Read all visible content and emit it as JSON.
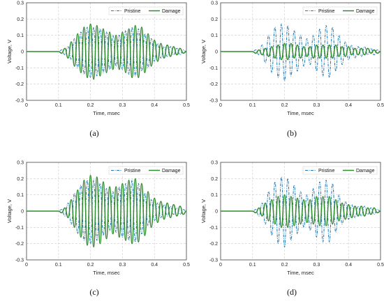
{
  "figure": {
    "colors": {
      "pristine": "#1f77b4",
      "damage": "#2e8b2e",
      "grid": "#cccccc",
      "axis": "#444444"
    }
  },
  "chart_data": [
    {
      "panel_label": "(a)",
      "type": "line",
      "xlabel": "Time, msec",
      "ylabel": "Voltage, V",
      "xlim": [
        0,
        0.5
      ],
      "ylim": [
        -0.3,
        0.3
      ],
      "x_ticks": [
        "0",
        "0.1",
        "0.2",
        "0.3",
        "0.4",
        "0.5"
      ],
      "y_ticks": [
        "0.3",
        "0.2",
        "0.1",
        "0",
        "-0.1",
        "-0.2",
        "-0.3"
      ],
      "grid": true,
      "legend_position": "top-right",
      "series": [
        {
          "name": "Pristine",
          "style": "dash-dot",
          "x": [
            0,
            0.1,
            0.11,
            0.12,
            0.13,
            0.14,
            0.15,
            0.16,
            0.17,
            0.18,
            0.19,
            0.2,
            0.21,
            0.22,
            0.23,
            0.24,
            0.25,
            0.26,
            0.27,
            0.28,
            0.29,
            0.3,
            0.31,
            0.32,
            0.33,
            0.34,
            0.35,
            0.36,
            0.37,
            0.38,
            0.39,
            0.4,
            0.41,
            0.42,
            0.43,
            0.44,
            0.45,
            0.46,
            0.47,
            0.48,
            0.49,
            0.5
          ],
          "y": [
            0.0,
            0.0,
            0.01,
            -0.02,
            0.03,
            -0.05,
            0.08,
            -0.1,
            0.12,
            -0.14,
            0.15,
            -0.16,
            0.15,
            -0.15,
            0.14,
            -0.13,
            0.12,
            -0.11,
            0.1,
            -0.09,
            0.1,
            -0.11,
            0.13,
            -0.14,
            0.15,
            -0.15,
            0.14,
            -0.12,
            0.11,
            -0.1,
            0.08,
            -0.06,
            0.05,
            -0.04,
            0.03,
            -0.03,
            0.03,
            -0.02,
            0.02,
            -0.02,
            0.01,
            0.0
          ]
        },
        {
          "name": "Damage",
          "style": "solid",
          "x": [
            0,
            0.1,
            0.11,
            0.12,
            0.13,
            0.14,
            0.15,
            0.16,
            0.17,
            0.18,
            0.19,
            0.2,
            0.21,
            0.22,
            0.23,
            0.24,
            0.25,
            0.26,
            0.27,
            0.28,
            0.29,
            0.3,
            0.31,
            0.32,
            0.33,
            0.34,
            0.35,
            0.36,
            0.37,
            0.38,
            0.39,
            0.4,
            0.41,
            0.42,
            0.43,
            0.44,
            0.45,
            0.46,
            0.47,
            0.48,
            0.49,
            0.5
          ],
          "y": [
            0.0,
            0.0,
            -0.01,
            0.02,
            -0.04,
            0.06,
            -0.09,
            0.11,
            -0.13,
            0.15,
            -0.16,
            0.17,
            -0.17,
            0.16,
            -0.15,
            0.14,
            -0.13,
            0.12,
            -0.11,
            0.1,
            -0.11,
            0.12,
            -0.13,
            0.14,
            -0.16,
            0.16,
            -0.16,
            0.15,
            -0.13,
            0.11,
            -0.09,
            0.07,
            -0.06,
            0.05,
            -0.04,
            0.04,
            -0.03,
            0.03,
            -0.02,
            0.02,
            -0.01,
            0.0
          ]
        }
      ]
    },
    {
      "panel_label": "(b)",
      "type": "line",
      "xlabel": "Time, msec",
      "ylabel": "Voltage, V",
      "xlim": [
        0,
        0.5
      ],
      "ylim": [
        -0.3,
        0.3
      ],
      "x_ticks": [
        "0",
        "0.1",
        "0.2",
        "0.3",
        "0.4",
        "0.5"
      ],
      "y_ticks": [
        "0.3",
        "0.2",
        "0.1",
        "0",
        "-0.1",
        "-0.2",
        "-0.3"
      ],
      "grid": true,
      "legend_position": "top-right",
      "series": [
        {
          "name": "Pristine",
          "style": "dash-dot",
          "x": [
            0,
            0.1,
            0.11,
            0.12,
            0.13,
            0.14,
            0.15,
            0.16,
            0.17,
            0.18,
            0.19,
            0.2,
            0.21,
            0.22,
            0.23,
            0.24,
            0.25,
            0.26,
            0.27,
            0.28,
            0.29,
            0.3,
            0.31,
            0.32,
            0.33,
            0.34,
            0.35,
            0.36,
            0.37,
            0.38,
            0.39,
            0.4,
            0.41,
            0.42,
            0.43,
            0.44,
            0.45,
            0.46,
            0.47,
            0.48,
            0.49,
            0.5
          ],
          "y": [
            0.0,
            0.0,
            0.01,
            -0.02,
            0.04,
            -0.07,
            0.1,
            -0.13,
            0.15,
            -0.16,
            0.17,
            -0.18,
            0.16,
            -0.15,
            0.13,
            -0.12,
            0.1,
            -0.09,
            0.08,
            -0.08,
            0.1,
            -0.12,
            0.14,
            -0.15,
            0.16,
            -0.16,
            0.15,
            -0.12,
            0.1,
            -0.08,
            0.06,
            -0.05,
            0.04,
            -0.04,
            0.03,
            -0.03,
            0.03,
            -0.02,
            0.02,
            -0.02,
            0.01,
            0.0
          ]
        },
        {
          "name": "Damage",
          "style": "solid",
          "x": [
            0,
            0.1,
            0.11,
            0.12,
            0.13,
            0.14,
            0.15,
            0.16,
            0.17,
            0.18,
            0.19,
            0.2,
            0.21,
            0.22,
            0.23,
            0.24,
            0.25,
            0.26,
            0.27,
            0.28,
            0.29,
            0.3,
            0.31,
            0.32,
            0.33,
            0.34,
            0.35,
            0.36,
            0.37,
            0.38,
            0.39,
            0.4,
            0.41,
            0.42,
            0.43,
            0.44,
            0.45,
            0.46,
            0.47,
            0.48,
            0.49,
            0.5
          ],
          "y": [
            0.0,
            0.0,
            -0.01,
            0.01,
            -0.02,
            0.02,
            -0.03,
            0.03,
            -0.04,
            0.04,
            -0.05,
            0.05,
            -0.05,
            0.05,
            -0.04,
            0.04,
            -0.04,
            0.03,
            -0.03,
            0.03,
            -0.04,
            0.04,
            -0.04,
            0.04,
            -0.04,
            0.04,
            -0.04,
            0.04,
            -0.03,
            0.03,
            -0.03,
            0.03,
            -0.02,
            0.02,
            -0.02,
            0.02,
            -0.02,
            0.02,
            -0.01,
            0.01,
            -0.01,
            0.0
          ]
        }
      ]
    },
    {
      "panel_label": "(c)",
      "type": "line",
      "xlabel": "Time, msec",
      "ylabel": "Voltage, V",
      "xlim": [
        0,
        0.5
      ],
      "ylim": [
        -0.3,
        0.3
      ],
      "x_ticks": [
        "0",
        "0.1",
        "0.2",
        "0.3",
        "0.4",
        "0.5"
      ],
      "y_ticks": [
        "0.3",
        "0.2",
        "0.1",
        "0",
        "-0.1",
        "-0.2",
        "-0.3"
      ],
      "grid": true,
      "legend_position": "top-right",
      "series": [
        {
          "name": "Pristine",
          "style": "dash-dot",
          "x": [
            0,
            0.1,
            0.11,
            0.12,
            0.13,
            0.14,
            0.15,
            0.16,
            0.17,
            0.18,
            0.19,
            0.2,
            0.21,
            0.22,
            0.23,
            0.24,
            0.25,
            0.26,
            0.27,
            0.28,
            0.29,
            0.3,
            0.31,
            0.32,
            0.33,
            0.34,
            0.35,
            0.36,
            0.37,
            0.38,
            0.39,
            0.4,
            0.41,
            0.42,
            0.43,
            0.44,
            0.45,
            0.46,
            0.47,
            0.48,
            0.49,
            0.5
          ],
          "y": [
            0.0,
            0.0,
            0.01,
            -0.03,
            0.05,
            -0.08,
            0.11,
            -0.14,
            0.16,
            -0.18,
            0.19,
            -0.2,
            0.19,
            -0.18,
            0.17,
            -0.15,
            0.14,
            -0.12,
            0.12,
            -0.13,
            0.15,
            -0.16,
            0.17,
            -0.18,
            0.19,
            -0.19,
            0.17,
            -0.14,
            0.11,
            -0.09,
            0.07,
            -0.06,
            0.05,
            -0.04,
            0.04,
            -0.03,
            0.03,
            -0.02,
            0.02,
            -0.02,
            0.01,
            0.0
          ]
        },
        {
          "name": "Damage",
          "style": "solid",
          "x": [
            0,
            0.1,
            0.11,
            0.12,
            0.13,
            0.14,
            0.15,
            0.16,
            0.17,
            0.18,
            0.19,
            0.2,
            0.21,
            0.22,
            0.23,
            0.24,
            0.25,
            0.26,
            0.27,
            0.28,
            0.29,
            0.3,
            0.31,
            0.32,
            0.33,
            0.34,
            0.35,
            0.36,
            0.37,
            0.38,
            0.39,
            0.4,
            0.41,
            0.42,
            0.43,
            0.44,
            0.45,
            0.46,
            0.47,
            0.48,
            0.49,
            0.5
          ],
          "y": [
            0.0,
            0.0,
            -0.01,
            0.02,
            -0.04,
            0.07,
            -0.1,
            0.13,
            -0.16,
            0.19,
            -0.21,
            0.22,
            -0.22,
            0.21,
            -0.2,
            0.18,
            -0.17,
            0.15,
            -0.14,
            0.15,
            -0.16,
            0.17,
            -0.18,
            0.19,
            -0.2,
            0.2,
            -0.19,
            0.17,
            -0.15,
            0.12,
            -0.1,
            0.08,
            -0.07,
            0.06,
            -0.05,
            0.05,
            -0.04,
            0.04,
            -0.03,
            0.03,
            -0.02,
            0.0
          ]
        }
      ]
    },
    {
      "panel_label": "(d)",
      "type": "line",
      "xlabel": "Time, msec",
      "ylabel": "Voltage, V",
      "xlim": [
        0,
        0.5
      ],
      "ylim": [
        -0.3,
        0.3
      ],
      "x_ticks": [
        "0",
        "0.1",
        "0.2",
        "0.3",
        "0.4",
        "0.5"
      ],
      "y_ticks": [
        "0.3",
        "0.2",
        "0.1",
        "0",
        "-0.1",
        "-0.2",
        "-0.3"
      ],
      "grid": true,
      "legend_position": "top-right",
      "series": [
        {
          "name": "Pristine",
          "style": "dash-dot",
          "x": [
            0,
            0.1,
            0.11,
            0.12,
            0.13,
            0.14,
            0.15,
            0.16,
            0.17,
            0.18,
            0.19,
            0.2,
            0.21,
            0.22,
            0.23,
            0.24,
            0.25,
            0.26,
            0.27,
            0.28,
            0.29,
            0.3,
            0.31,
            0.32,
            0.33,
            0.34,
            0.35,
            0.36,
            0.37,
            0.38,
            0.39,
            0.4,
            0.41,
            0.42,
            0.43,
            0.44,
            0.45,
            0.46,
            0.47,
            0.48,
            0.49,
            0.5
          ],
          "y": [
            0.0,
            0.0,
            0.01,
            -0.03,
            0.05,
            -0.08,
            0.12,
            -0.15,
            0.18,
            -0.2,
            0.21,
            -0.22,
            0.2,
            -0.18,
            0.16,
            -0.14,
            0.12,
            -0.1,
            0.1,
            -0.12,
            0.14,
            -0.16,
            0.18,
            -0.19,
            0.19,
            -0.19,
            0.17,
            -0.13,
            0.1,
            -0.08,
            0.06,
            -0.05,
            0.04,
            -0.04,
            0.03,
            -0.03,
            0.03,
            -0.02,
            0.02,
            -0.02,
            0.01,
            0.0
          ]
        },
        {
          "name": "Damage",
          "style": "solid",
          "x": [
            0,
            0.1,
            0.11,
            0.12,
            0.13,
            0.14,
            0.15,
            0.16,
            0.17,
            0.18,
            0.19,
            0.2,
            0.21,
            0.22,
            0.23,
            0.24,
            0.25,
            0.26,
            0.27,
            0.28,
            0.29,
            0.3,
            0.31,
            0.32,
            0.33,
            0.34,
            0.35,
            0.36,
            0.37,
            0.38,
            0.39,
            0.4,
            0.41,
            0.42,
            0.43,
            0.44,
            0.45,
            0.46,
            0.47,
            0.48,
            0.49,
            0.5
          ],
          "y": [
            0.0,
            0.0,
            -0.01,
            0.02,
            -0.03,
            0.05,
            -0.06,
            0.07,
            -0.08,
            0.09,
            -0.1,
            0.1,
            -0.1,
            0.09,
            -0.09,
            0.08,
            -0.08,
            0.07,
            -0.07,
            0.07,
            -0.08,
            0.09,
            -0.09,
            0.09,
            -0.09,
            0.09,
            -0.08,
            0.07,
            -0.06,
            0.05,
            -0.05,
            0.04,
            -0.04,
            0.03,
            -0.03,
            0.03,
            -0.03,
            0.02,
            -0.02,
            0.02,
            -0.01,
            0.0
          ]
        }
      ]
    }
  ]
}
